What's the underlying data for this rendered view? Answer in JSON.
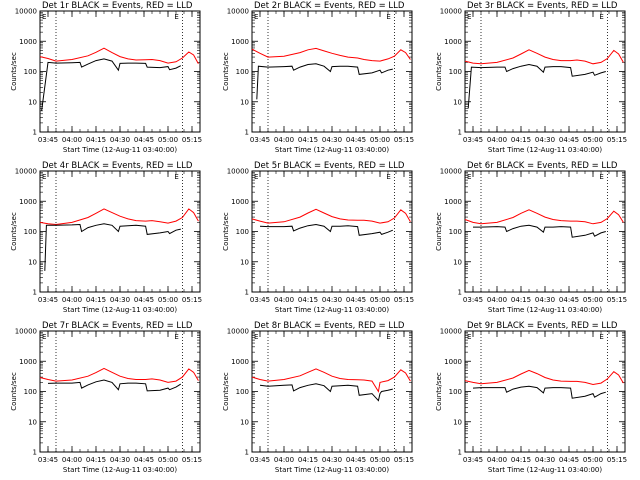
{
  "chart_data": {
    "type": "line",
    "figure_layout": "3x3 grid of detector panels",
    "common": {
      "ylabel": "Counts/sec",
      "xlabel": "Start Time (12-Aug-11 03:40:00)",
      "xtick_labels": [
        "03:45",
        "04:00",
        "04:15",
        "04:30",
        "04:45",
        "05:00",
        "05:15"
      ],
      "xtick_minutes": [
        5,
        20,
        35,
        50,
        65,
        80,
        95
      ],
      "xlim_minutes": [
        0,
        100
      ],
      "ylim": [
        1,
        10000
      ],
      "yscale": "log",
      "ytick_labels": [
        "1",
        "10",
        "100",
        "1000",
        "10000"
      ],
      "ytick_values": [
        1,
        10,
        100,
        1000,
        10000
      ],
      "eclipse_marker_label": "E",
      "eclipse_marker_minutes": [
        10,
        89
      ],
      "series_names": [
        "Events",
        "LLD"
      ],
      "series_colors": {
        "Events": "#000000",
        "LLD": "#ff0000"
      }
    },
    "panels": [
      {
        "title": "Det 1r BLACK = Events, RED = LLD",
        "x": [
          1,
          5,
          10,
          20,
          25,
          26,
          30,
          35,
          40,
          45,
          49,
          50,
          55,
          60,
          66,
          67,
          75,
          80,
          81,
          85,
          88
        ],
        "events": [
          5,
          200,
          190,
          195,
          200,
          140,
          175,
          230,
          260,
          220,
          110,
          185,
          190,
          190,
          185,
          140,
          135,
          145,
          115,
          130,
          155
        ],
        "lld_x": [
          0,
          5,
          10,
          20,
          30,
          35,
          40,
          45,
          50,
          55,
          60,
          66,
          70,
          75,
          80,
          85,
          89,
          93,
          96,
          99
        ],
        "lld": [
          310,
          270,
          220,
          250,
          330,
          430,
          590,
          420,
          310,
          260,
          240,
          245,
          250,
          230,
          190,
          210,
          280,
          440,
          350,
          180
        ]
      },
      {
        "title": "Det 2r BLACK = Events, RED = LLD",
        "x": [
          3,
          4,
          10,
          20,
          25,
          26,
          30,
          35,
          40,
          45,
          49,
          50,
          55,
          60,
          66,
          67,
          75,
          80,
          81,
          85,
          88
        ],
        "events": [
          12,
          150,
          140,
          145,
          150,
          110,
          140,
          170,
          180,
          150,
          100,
          145,
          150,
          150,
          140,
          80,
          90,
          110,
          90,
          110,
          120
        ],
        "lld_x": [
          0,
          5,
          10,
          20,
          30,
          35,
          40,
          45,
          50,
          55,
          60,
          66,
          70,
          75,
          80,
          85,
          89,
          93,
          96,
          99
        ],
        "lld": [
          550,
          400,
          300,
          320,
          420,
          520,
          580,
          480,
          400,
          340,
          300,
          280,
          250,
          230,
          220,
          260,
          320,
          520,
          420,
          250
        ]
      },
      {
        "title": "Det 3r BLACK = Events, RED = LLD",
        "x": [
          2,
          4,
          10,
          20,
          25,
          26,
          30,
          35,
          40,
          45,
          49,
          50,
          55,
          60,
          66,
          67,
          75,
          80,
          81,
          85,
          88
        ],
        "events": [
          6,
          140,
          135,
          140,
          140,
          100,
          125,
          150,
          170,
          150,
          95,
          140,
          145,
          145,
          135,
          70,
          80,
          95,
          75,
          90,
          100
        ],
        "lld_x": [
          0,
          5,
          10,
          20,
          30,
          35,
          40,
          45,
          50,
          55,
          60,
          66,
          70,
          75,
          80,
          85,
          89,
          93,
          96,
          99
        ],
        "lld": [
          220,
          190,
          180,
          200,
          280,
          380,
          520,
          400,
          300,
          250,
          230,
          230,
          240,
          220,
          180,
          200,
          270,
          500,
          380,
          200
        ]
      },
      {
        "title": "Det 4r BLACK = Events, RED = LLD",
        "x": [
          3,
          4,
          10,
          20,
          25,
          26,
          30,
          35,
          40,
          45,
          49,
          50,
          55,
          60,
          66,
          67,
          75,
          80,
          81,
          85,
          88
        ],
        "events": [
          5,
          160,
          160,
          165,
          170,
          100,
          135,
          160,
          180,
          160,
          100,
          150,
          155,
          160,
          150,
          80,
          90,
          100,
          85,
          110,
          120
        ],
        "lld_x": [
          0,
          5,
          10,
          20,
          30,
          35,
          40,
          45,
          50,
          55,
          60,
          66,
          70,
          75,
          80,
          85,
          89,
          93,
          96,
          99
        ],
        "lld": [
          200,
          180,
          170,
          200,
          290,
          400,
          560,
          420,
          320,
          260,
          230,
          220,
          230,
          210,
          190,
          220,
          290,
          560,
          420,
          220
        ]
      },
      {
        "title": "Det 5r BLACK = Events, RED = LLD",
        "x": [
          5,
          10,
          20,
          25,
          26,
          30,
          35,
          40,
          45,
          49,
          50,
          55,
          60,
          66,
          67,
          75,
          80,
          81,
          85,
          88
        ],
        "events": [
          150,
          145,
          145,
          150,
          105,
          130,
          155,
          170,
          150,
          100,
          150,
          150,
          155,
          145,
          75,
          85,
          95,
          80,
          95,
          110
        ],
        "lld_x": [
          0,
          5,
          10,
          20,
          30,
          35,
          40,
          45,
          50,
          55,
          60,
          66,
          70,
          75,
          80,
          85,
          89,
          93,
          96,
          99
        ],
        "lld": [
          260,
          220,
          190,
          210,
          300,
          410,
          540,
          410,
          310,
          260,
          240,
          235,
          235,
          220,
          190,
          210,
          280,
          520,
          400,
          210
        ]
      },
      {
        "title": "Det 6r BLACK = Events, RED = LLD",
        "x": [
          5,
          10,
          20,
          25,
          26,
          30,
          35,
          40,
          45,
          49,
          50,
          55,
          60,
          66,
          67,
          75,
          80,
          81,
          85,
          88
        ],
        "events": [
          140,
          140,
          145,
          140,
          100,
          125,
          150,
          160,
          140,
          95,
          140,
          140,
          145,
          140,
          65,
          75,
          90,
          70,
          90,
          100
        ],
        "lld_x": [
          0,
          5,
          10,
          20,
          30,
          35,
          40,
          45,
          50,
          55,
          60,
          66,
          70,
          75,
          80,
          85,
          89,
          93,
          96,
          99
        ],
        "lld": [
          250,
          200,
          180,
          200,
          290,
          400,
          520,
          400,
          300,
          250,
          230,
          220,
          220,
          210,
          180,
          200,
          270,
          470,
          360,
          200
        ]
      },
      {
        "title": "Det 7r BLACK = Events, RED = LLD",
        "x": [
          5,
          10,
          20,
          25,
          26,
          30,
          35,
          40,
          45,
          49,
          50,
          55,
          60,
          66,
          67,
          75,
          80,
          81,
          85,
          88
        ],
        "events": [
          185,
          190,
          190,
          200,
          130,
          165,
          210,
          240,
          200,
          115,
          180,
          190,
          190,
          180,
          105,
          110,
          130,
          115,
          140,
          175
        ],
        "lld_x": [
          0,
          5,
          10,
          20,
          30,
          35,
          40,
          45,
          50,
          55,
          60,
          66,
          70,
          75,
          80,
          85,
          89,
          93,
          96,
          99
        ],
        "lld": [
          290,
          250,
          220,
          240,
          320,
          420,
          580,
          430,
          320,
          270,
          250,
          250,
          260,
          240,
          200,
          220,
          300,
          560,
          430,
          230
        ]
      },
      {
        "title": "Det 8r BLACK = Events, RED = LLD",
        "x": [
          5,
          10,
          20,
          25,
          26,
          30,
          35,
          40,
          45,
          49,
          50,
          55,
          60,
          66,
          67,
          75,
          79,
          80,
          81,
          85,
          88
        ],
        "events": [
          160,
          150,
          160,
          165,
          105,
          135,
          160,
          180,
          155,
          100,
          150,
          155,
          160,
          150,
          75,
          85,
          50,
          85,
          100,
          110,
          120
        ],
        "lld_x": [
          0,
          5,
          10,
          20,
          30,
          35,
          40,
          45,
          50,
          55,
          60,
          66,
          70,
          75,
          79,
          80,
          85,
          89,
          93,
          96,
          99
        ],
        "lld": [
          300,
          250,
          220,
          250,
          330,
          430,
          560,
          430,
          320,
          270,
          250,
          245,
          240,
          220,
          100,
          200,
          230,
          300,
          520,
          410,
          220
        ]
      },
      {
        "title": "Det 9r BLACK = Events, RED = LLD",
        "x": [
          5,
          10,
          20,
          25,
          26,
          30,
          35,
          40,
          45,
          49,
          50,
          55,
          60,
          66,
          67,
          75,
          80,
          81,
          85,
          88
        ],
        "events": [
          130,
          135,
          135,
          135,
          95,
          120,
          140,
          150,
          135,
          90,
          130,
          135,
          135,
          130,
          60,
          70,
          85,
          65,
          85,
          95
        ],
        "lld_x": [
          0,
          5,
          10,
          20,
          30,
          35,
          40,
          45,
          50,
          55,
          60,
          66,
          70,
          75,
          80,
          85,
          89,
          93,
          96,
          99
        ],
        "lld": [
          230,
          200,
          180,
          200,
          280,
          380,
          500,
          390,
          290,
          240,
          220,
          215,
          215,
          200,
          170,
          190,
          260,
          450,
          350,
          190
        ]
      }
    ]
  }
}
